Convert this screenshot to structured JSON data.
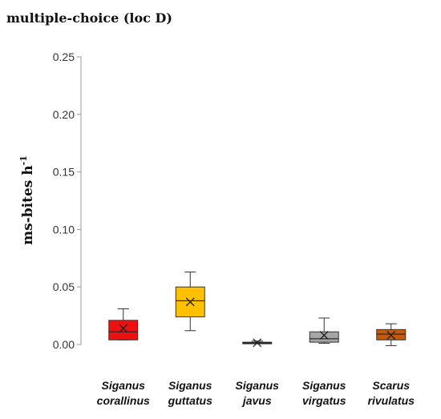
{
  "chart_data": {
    "type": "box",
    "title": "multiple-choice (loc D)",
    "ylabel": "ms-bites h",
    "ylabel_superscript": "-1",
    "xlabel": "",
    "ylim": [
      0,
      0.25
    ],
    "yticks": [
      "0.00",
      "0.05",
      "0.10",
      "0.15",
      "0.20",
      "0.25"
    ],
    "ytick_values": [
      0,
      0.05,
      0.1,
      0.15,
      0.2,
      0.25
    ],
    "grid": false,
    "legend": "none",
    "categories": [
      [
        "Siganus",
        "corallinus"
      ],
      [
        "Siganus",
        "guttatus"
      ],
      [
        "Siganus",
        "javus"
      ],
      [
        "Siganus",
        "virgatus"
      ],
      [
        "Scarus",
        "rivulatus"
      ]
    ],
    "boxes": [
      {
        "min": 0.004,
        "q1": 0.004,
        "median": 0.011,
        "q3": 0.021,
        "max": 0.031,
        "mean": 0.014,
        "color": "#ee1111"
      },
      {
        "min": 0.012,
        "q1": 0.024,
        "median": 0.038,
        "q3": 0.05,
        "max": 0.063,
        "mean": 0.037,
        "color": "#ffc000"
      },
      {
        "min": 0.001,
        "q1": 0.001,
        "median": 0.0015,
        "q3": 0.002,
        "max": 0.003,
        "mean": 0.0015,
        "color": "#222222"
      },
      {
        "min": 0.001,
        "q1": 0.002,
        "median": 0.005,
        "q3": 0.011,
        "max": 0.023,
        "mean": 0.008,
        "color": "#a6a6a6"
      },
      {
        "min": -0.001,
        "q1": 0.004,
        "median": 0.009,
        "q3": 0.013,
        "max": 0.018,
        "mean": 0.008,
        "color": "#c55a11"
      }
    ]
  }
}
